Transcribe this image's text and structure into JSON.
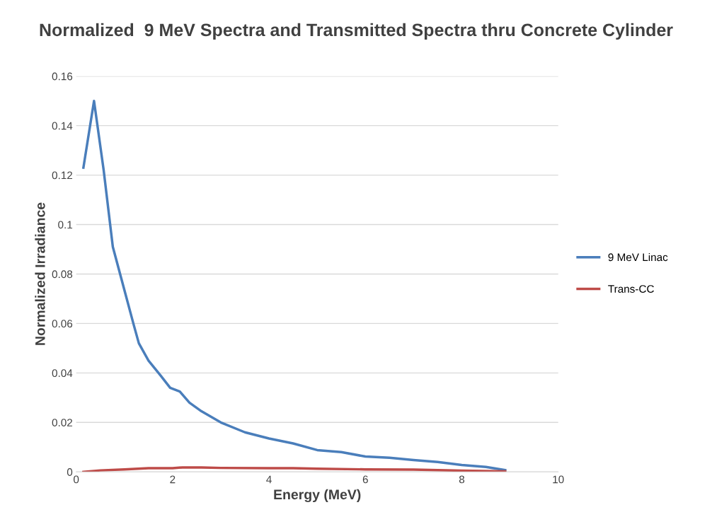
{
  "chart_data": {
    "type": "line",
    "title": "Normalized  9 MeV Spectra and Transmitted Spectra thru Concrete Cylinder",
    "xlabel": "Energy (MeV)",
    "ylabel": "Normalized Irradiance",
    "xlim": [
      0,
      10
    ],
    "xticks": [
      0,
      2,
      4,
      6,
      8,
      10
    ],
    "ylim": [
      0,
      0.16
    ],
    "yticks": [
      0,
      0.02,
      0.04,
      0.06,
      0.08,
      0.1,
      0.12,
      0.14,
      0.16
    ],
    "grid": "y",
    "legend": "right",
    "marker": "none",
    "line_style": "solid",
    "series": [
      {
        "name": "9 MeV Linac",
        "color": "#4a7ebb",
        "x": [
          0.15,
          0.37,
          0.57,
          0.76,
          0.98,
          1.2,
          1.3,
          1.5,
          1.75,
          1.95,
          2.15,
          2.35,
          2.6,
          3,
          3.5,
          4,
          4.5,
          5,
          5.5,
          6,
          6.5,
          7,
          7.5,
          8,
          8.5,
          8.9
        ],
        "values": [
          0.123,
          0.15,
          0.122,
          0.091,
          0.075,
          0.059,
          0.052,
          0.045,
          0.039,
          0.034,
          0.0325,
          0.028,
          0.0245,
          0.02,
          0.016,
          0.0135,
          0.0115,
          0.0088,
          0.008,
          0.0062,
          0.0057,
          0.0048,
          0.004,
          0.0028,
          0.002,
          0.0007
        ]
      },
      {
        "name": "Trans-CC",
        "color": "#be4b48",
        "x": [
          0.15,
          0.5,
          1,
          1.5,
          2,
          2.2,
          2.6,
          3,
          4,
          4.5,
          5,
          6,
          7,
          8,
          8.9
        ],
        "values": [
          0,
          0.0006,
          0.001,
          0.0015,
          0.0015,
          0.0018,
          0.0018,
          0.0016,
          0.0015,
          0.0015,
          0.0013,
          0.001,
          0.0009,
          0.0005,
          0.0002
        ]
      }
    ]
  }
}
